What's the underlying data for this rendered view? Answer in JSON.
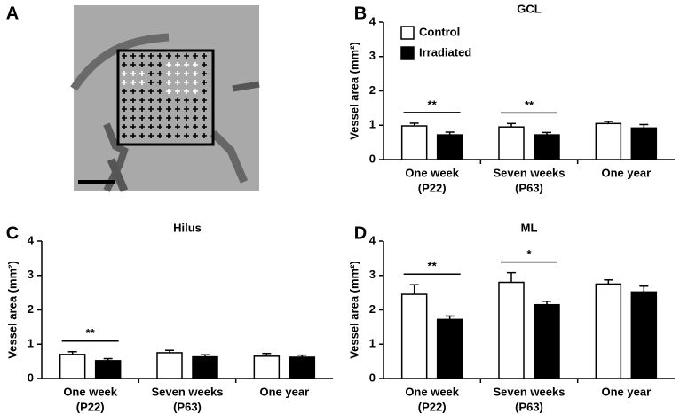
{
  "panel_a_label": "A",
  "chart_data": [
    {
      "type": "bar",
      "panel": "B",
      "title": "GCL",
      "y_label": "Vessel area (mm²)",
      "categories": [
        "One week",
        "Seven weeks",
        "One year"
      ],
      "category_sublabels": [
        "(P22)",
        "(P63)",
        null
      ],
      "series": [
        {
          "name": "Control",
          "color": "#ffffff",
          "values": [
            0.98,
            0.95,
            1.05
          ],
          "errors": [
            0.08,
            0.1,
            0.06
          ]
        },
        {
          "name": "Irradiated",
          "color": "#000000",
          "values": [
            0.72,
            0.72,
            0.92
          ],
          "errors": [
            0.08,
            0.07,
            0.1
          ]
        }
      ],
      "significance": [
        "**",
        "**",
        null
      ],
      "ylim": [
        0,
        4
      ],
      "yticks": [
        0,
        1,
        2,
        3,
        4
      ],
      "legend": true,
      "legend_position": "upper-left"
    },
    {
      "type": "bar",
      "panel": "C",
      "title": "Hilus",
      "y_label": "Vessel area (mm²)",
      "categories": [
        "One week",
        "Seven weeks",
        "One year"
      ],
      "category_sublabels": [
        "(P22)",
        "(P63)",
        null
      ],
      "series": [
        {
          "name": "Control",
          "color": "#ffffff",
          "values": [
            0.7,
            0.75,
            0.65
          ],
          "errors": [
            0.08,
            0.07,
            0.08
          ]
        },
        {
          "name": "Irradiated",
          "color": "#000000",
          "values": [
            0.52,
            0.63,
            0.62
          ],
          "errors": [
            0.06,
            0.06,
            0.06
          ]
        }
      ],
      "significance": [
        "**",
        null,
        null
      ],
      "ylim": [
        0,
        4
      ],
      "yticks": [
        0,
        1,
        2,
        3,
        4
      ],
      "legend": false
    },
    {
      "type": "bar",
      "panel": "D",
      "title": "ML",
      "y_label": "Vessel area (mm²)",
      "categories": [
        "One week",
        "Seven weeks",
        "One year"
      ],
      "category_sublabels": [
        "(P22)",
        "(P63)",
        null
      ],
      "series": [
        {
          "name": "Control",
          "color": "#ffffff",
          "values": [
            2.45,
            2.8,
            2.75
          ],
          "errors": [
            0.28,
            0.28,
            0.12
          ]
        },
        {
          "name": "Irradiated",
          "color": "#000000",
          "values": [
            1.72,
            2.15,
            2.52
          ],
          "errors": [
            0.1,
            0.1,
            0.17
          ]
        }
      ],
      "significance": [
        "**",
        "*",
        null
      ],
      "ylim": [
        0,
        4
      ],
      "yticks": [
        0,
        1,
        2,
        3,
        4
      ],
      "legend": false
    }
  ]
}
